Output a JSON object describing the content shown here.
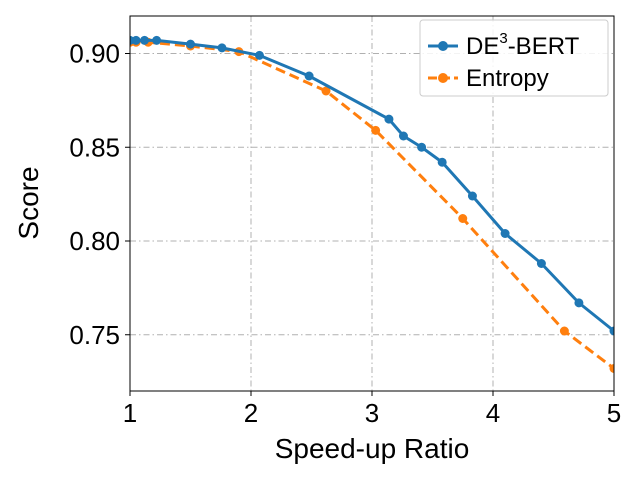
{
  "chart_data": {
    "type": "line",
    "title": "",
    "xlabel": "Speed-up Ratio",
    "ylabel": "Score",
    "xlim": [
      1,
      5
    ],
    "ylim": [
      0.72,
      0.92
    ],
    "xticks": [
      1,
      2,
      3,
      4,
      5
    ],
    "yticks": [
      0.75,
      0.8,
      0.85,
      0.9
    ],
    "xtick_labels": [
      "1",
      "2",
      "3",
      "4",
      "5"
    ],
    "ytick_labels": [
      "0.75",
      "0.80",
      "0.85",
      "0.90"
    ],
    "grid": true,
    "legend_position": "top-right",
    "series": [
      {
        "name_base": "DE",
        "name_sup": "3",
        "name_rest": "-BERT",
        "color": "#1f77b4",
        "line_style": "solid",
        "x": [
          1.0,
          1.05,
          1.12,
          1.22,
          1.5,
          1.76,
          2.07,
          2.48,
          3.14,
          3.26,
          3.41,
          3.58,
          3.83,
          4.1,
          4.4,
          4.71,
          5.0
        ],
        "y": [
          0.907,
          0.907,
          0.907,
          0.907,
          0.905,
          0.903,
          0.899,
          0.888,
          0.865,
          0.856,
          0.85,
          0.842,
          0.824,
          0.804,
          0.788,
          0.767,
          0.752
        ]
      },
      {
        "name": "Entropy",
        "color": "#ff7f0e",
        "line_style": "dashed",
        "x": [
          1.0,
          1.05,
          1.15,
          1.5,
          1.9,
          2.62,
          3.03,
          3.75,
          4.59,
          5.0
        ],
        "y": [
          0.906,
          0.906,
          0.906,
          0.904,
          0.901,
          0.88,
          0.859,
          0.812,
          0.752,
          0.732
        ]
      }
    ]
  }
}
